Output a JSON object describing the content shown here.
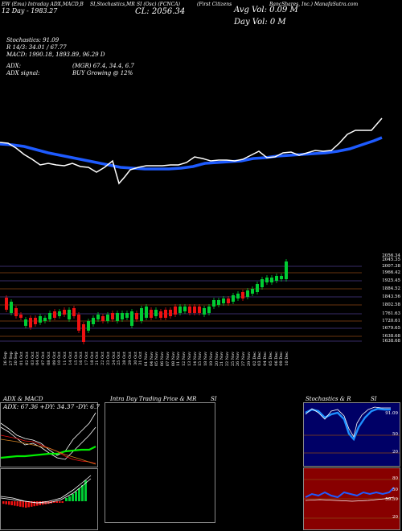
{
  "header": {
    "line1_a": "EW (Ema) Intraday ADX,MACD,B",
    "line1_b": "SI,Stochastics,MR",
    "line1_c": "SI (Osc) (FCNCA)",
    "line1_d": "(First Citizens",
    "line1_e": "BancShares, Inc.) ManafaSutra.com",
    "line2": "12  Day  -  1983.27",
    "close_label": "CL: 2056.34",
    "avg_vol": "Avg Vol: 0.09  M",
    "day_vol": "Day Vol: 0   M"
  },
  "indicators": {
    "stochastics": "Stochastics: 91.09",
    "r_value": "R 14/3: 34.01 / 67.77",
    "macd": "MACD: 1990.18, 1893.89, 96.29 D",
    "adx": "ADX:",
    "adx_mgr": "(MGR) 67.4, 34.4, 6.7",
    "adx_signal": "ADX  signal:",
    "adx_signal_val": "BUY Growing @ 12%"
  },
  "price_axis": [
    "2056.34",
    "2045.35",
    "2007.38",
    "1966.42",
    "1925.45",
    "1884.52",
    "1843.56",
    "1802.58",
    "1761.63",
    "1720.61",
    "1679.65",
    "1638.68",
    "1638.68"
  ],
  "date_labels": [
    "26 Sep",
    "27 Sep",
    "30 Sep",
    "01 Oct",
    "02 Oct",
    "03 Oct",
    "04 Oct",
    "07 Oct",
    "08 Oct",
    "09 Oct",
    "10 Oct",
    "11 Oct",
    "14 Oct",
    "15 Oct",
    "16 Oct",
    "17 Oct",
    "18 Oct",
    "21 Oct",
    "22 Oct",
    "23 Oct",
    "24 Oct",
    "25 Oct",
    "28 Oct",
    "29 Oct",
    "30 Oct",
    "31 Oct",
    "01 Nov",
    "04 Nov",
    "05 Nov",
    "06 Nov",
    "07 Nov",
    "08 Nov",
    "11 Nov",
    "12 Nov",
    "13 Nov",
    "14 Nov",
    "15 Nov",
    "18 Nov",
    "19 Nov",
    "20 Nov",
    "21 Nov",
    "22 Nov",
    "25 Nov",
    "26 Nov",
    "27 Nov",
    "29 Nov",
    "02 Dec",
    "03 Dec",
    "04 Dec",
    "05 Dec",
    "06 Dec",
    "09 Dec",
    "10 Dec"
  ],
  "bottom": {
    "adx_title": "ADX  & MACD",
    "adx_values": "ADX: 67.36  +DY: 34.37  -DY: 6.7",
    "intraday_title": "Intra  Day Trading Price  & MR",
    "intraday_si": "SI",
    "stoch_title": "Stochastics & R",
    "stoch_si": "SI",
    "stoch_axis": [
      "91.09",
      "50",
      "20"
    ],
    "rsi_axis": [
      "80",
      "50",
      "59.59",
      "20"
    ]
  },
  "colors": {
    "ema_white": "#ffffff",
    "ema_blue": "#1e5bff",
    "up_candle": "#00cc33",
    "down_candle": "#ee1111",
    "gridline": "#8b4513",
    "navy_panel": "#000066",
    "maroon_panel": "#880000"
  }
}
